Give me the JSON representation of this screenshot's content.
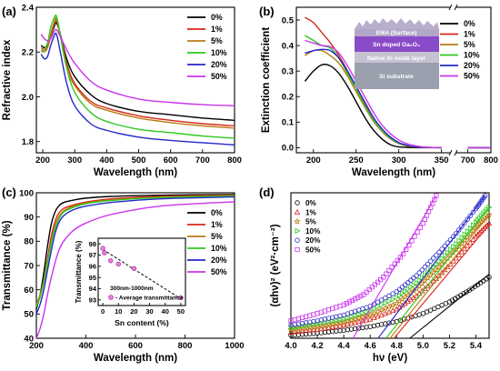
{
  "colors": {
    "0%": "#000000",
    "1%": "#d62718",
    "5%": "#b87a10",
    "10%": "#2ec91f",
    "20%": "#2327c8",
    "50%": "#cc33ee"
  },
  "legend_labels": [
    "0%",
    "1%",
    "5%",
    "10%",
    "20%",
    "50%"
  ],
  "chart_data": [
    {
      "panel": "(a)",
      "type": "line",
      "xlabel": "Wavelength (nm)",
      "ylabel": "Refractive index",
      "xlim": [
        180,
        800
      ],
      "ylim": [
        1.75,
        2.4
      ],
      "xticks": [
        200,
        300,
        400,
        500,
        600,
        700,
        800
      ],
      "yticks": [
        1.8,
        2.0,
        2.2,
        2.4
      ],
      "legend_loc": "top-right",
      "series": [
        {
          "name": "0%",
          "x": [
            195,
            205,
            215,
            225,
            235,
            243,
            255,
            275,
            300,
            350,
            400,
            500,
            600,
            700,
            800
          ],
          "y": [
            2.23,
            2.22,
            2.23,
            2.27,
            2.31,
            2.33,
            2.28,
            2.17,
            2.09,
            2.01,
            1.97,
            1.935,
            1.92,
            1.905,
            1.895
          ]
        },
        {
          "name": "1%",
          "x": [
            195,
            205,
            215,
            225,
            235,
            243,
            255,
            275,
            300,
            350,
            400,
            500,
            600,
            700,
            800
          ],
          "y": [
            2.22,
            2.21,
            2.22,
            2.27,
            2.32,
            2.34,
            2.28,
            2.15,
            2.06,
            1.98,
            1.95,
            1.915,
            1.895,
            1.88,
            1.87
          ]
        },
        {
          "name": "5%",
          "x": [
            195,
            205,
            215,
            225,
            235,
            243,
            255,
            275,
            300,
            350,
            400,
            500,
            600,
            700,
            800
          ],
          "y": [
            2.21,
            2.2,
            2.22,
            2.28,
            2.33,
            2.35,
            2.27,
            2.13,
            2.05,
            1.97,
            1.94,
            1.905,
            1.885,
            1.87,
            1.86
          ]
        },
        {
          "name": "10%",
          "x": [
            195,
            205,
            215,
            225,
            235,
            243,
            255,
            275,
            300,
            350,
            400,
            500,
            600,
            700,
            800
          ],
          "y": [
            2.2,
            2.21,
            2.24,
            2.31,
            2.35,
            2.36,
            2.28,
            2.13,
            2.02,
            1.93,
            1.89,
            1.855,
            1.84,
            1.825,
            1.815
          ]
        },
        {
          "name": "20%",
          "x": [
            195,
            205,
            215,
            225,
            235,
            243,
            255,
            275,
            300,
            350,
            400,
            500,
            600,
            700,
            800
          ],
          "y": [
            2.19,
            2.17,
            2.18,
            2.23,
            2.27,
            2.28,
            2.2,
            2.06,
            1.96,
            1.88,
            1.85,
            1.82,
            1.805,
            1.795,
            1.785
          ]
        },
        {
          "name": "50%",
          "x": [
            195,
            205,
            215,
            225,
            235,
            243,
            255,
            275,
            300,
            350,
            400,
            500,
            600,
            700,
            800
          ],
          "y": [
            2.28,
            2.26,
            2.25,
            2.26,
            2.29,
            2.3,
            2.27,
            2.21,
            2.15,
            2.07,
            2.03,
            1.99,
            1.975,
            1.965,
            1.96
          ]
        }
      ]
    },
    {
      "panel": "(b)",
      "type": "line",
      "xlabel": "Wavelength (nm)",
      "ylabel": "Extinction coefficient",
      "xlim": [
        180,
        800
      ],
      "axis_break": [
        360,
        650
      ],
      "ylim": [
        -0.02,
        0.55
      ],
      "xticks": [
        200,
        250,
        300,
        350,
        700,
        800
      ],
      "yticks": [
        0.0,
        0.1,
        0.2,
        0.3,
        0.4,
        0.5
      ],
      "legend_loc": "top-right",
      "inset_layers": [
        "EMA (Surface)",
        "Sn doped Ga₂O₃",
        "Native Si oxide layer",
        "Si substrate"
      ],
      "series": [
        {
          "name": "0%",
          "x": [
            190,
            200,
            210,
            220,
            230,
            240,
            250,
            260,
            270,
            280,
            290,
            300,
            320,
            350,
            700,
            800
          ],
          "y": [
            0.26,
            0.3,
            0.325,
            0.32,
            0.29,
            0.24,
            0.18,
            0.12,
            0.07,
            0.035,
            0.012,
            0.003,
            0.0,
            0.0,
            0.0,
            0.0
          ]
        },
        {
          "name": "1%",
          "x": [
            190,
            200,
            210,
            220,
            230,
            240,
            250,
            260,
            270,
            280,
            290,
            300,
            310,
            320,
            350,
            700,
            800
          ],
          "y": [
            0.51,
            0.49,
            0.45,
            0.41,
            0.36,
            0.3,
            0.23,
            0.17,
            0.11,
            0.065,
            0.035,
            0.016,
            0.006,
            0.002,
            0.0,
            0.0,
            0.0
          ]
        },
        {
          "name": "5%",
          "x": [
            190,
            200,
            210,
            220,
            230,
            240,
            250,
            260,
            270,
            280,
            290,
            300,
            310,
            320,
            350,
            700,
            800
          ],
          "y": [
            0.36,
            0.38,
            0.38,
            0.36,
            0.33,
            0.28,
            0.22,
            0.16,
            0.105,
            0.065,
            0.036,
            0.017,
            0.007,
            0.002,
            0.0,
            0.0,
            0.0
          ]
        },
        {
          "name": "10%",
          "x": [
            190,
            200,
            210,
            220,
            230,
            240,
            250,
            260,
            270,
            280,
            290,
            300,
            310,
            320,
            350,
            700,
            800
          ],
          "y": [
            0.44,
            0.42,
            0.4,
            0.39,
            0.35,
            0.29,
            0.23,
            0.165,
            0.11,
            0.068,
            0.038,
            0.018,
            0.008,
            0.003,
            0.0,
            0.0,
            0.0
          ]
        },
        {
          "name": "20%",
          "x": [
            190,
            200,
            210,
            220,
            230,
            240,
            250,
            260,
            270,
            280,
            290,
            300,
            310,
            320,
            350,
            700,
            800
          ],
          "y": [
            0.37,
            0.38,
            0.385,
            0.38,
            0.35,
            0.3,
            0.24,
            0.18,
            0.12,
            0.075,
            0.042,
            0.02,
            0.009,
            0.003,
            0.0,
            0.0,
            0.0
          ]
        },
        {
          "name": "50%",
          "x": [
            190,
            200,
            210,
            220,
            230,
            240,
            250,
            260,
            270,
            280,
            290,
            300,
            310,
            320,
            330,
            350,
            700,
            800
          ],
          "y": [
            0.42,
            0.41,
            0.4,
            0.395,
            0.37,
            0.32,
            0.26,
            0.2,
            0.14,
            0.09,
            0.055,
            0.03,
            0.015,
            0.007,
            0.002,
            0.0,
            0.0,
            0.0
          ]
        }
      ]
    },
    {
      "panel": "(c)",
      "type": "line",
      "xlabel": "Wavelength (nm)",
      "ylabel": "Transmittance (%)",
      "xlim": [
        200,
        1000
      ],
      "ylim": [
        40,
        100
      ],
      "xticks": [
        200,
        400,
        600,
        800,
        1000
      ],
      "yticks": [
        40,
        50,
        60,
        70,
        80,
        90,
        100
      ],
      "legend_loc": "right",
      "series": [
        {
          "name": "0%",
          "x": [
            200,
            215,
            230,
            245,
            260,
            275,
            290,
            310,
            350,
            400,
            500,
            700,
            1000
          ],
          "y": [
            52,
            58,
            67,
            78,
            87,
            92,
            94.5,
            96,
            97,
            97.8,
            98.5,
            99,
            99.3
          ]
        },
        {
          "name": "1%",
          "x": [
            200,
            215,
            230,
            245,
            260,
            275,
            290,
            310,
            350,
            400,
            500,
            700,
            1000
          ],
          "y": [
            53,
            57,
            64,
            73,
            82,
            88,
            91.5,
            93.5,
            95,
            96.2,
            97.5,
            98.5,
            99
          ]
        },
        {
          "name": "5%",
          "x": [
            200,
            215,
            230,
            245,
            260,
            275,
            290,
            310,
            350,
            400,
            500,
            700,
            1000
          ],
          "y": [
            54,
            58,
            64,
            72,
            80,
            86,
            90,
            92.5,
            94.5,
            95.8,
            97,
            98.2,
            98.8
          ]
        },
        {
          "name": "10%",
          "x": [
            200,
            215,
            230,
            245,
            260,
            275,
            290,
            310,
            350,
            400,
            500,
            700,
            1000
          ],
          "y": [
            53,
            57,
            63,
            71,
            79,
            85,
            89,
            92,
            94,
            95.5,
            96.8,
            98,
            98.7
          ]
        },
        {
          "name": "20%",
          "x": [
            200,
            215,
            230,
            245,
            260,
            275,
            290,
            310,
            350,
            400,
            500,
            700,
            1000
          ],
          "y": [
            50,
            54,
            60,
            68,
            76,
            83,
            87.5,
            90.5,
            93,
            94.5,
            96,
            97.5,
            98.3
          ]
        },
        {
          "name": "50%",
          "x": [
            200,
            215,
            230,
            245,
            260,
            275,
            290,
            310,
            350,
            400,
            500,
            700,
            1000
          ],
          "y": [
            40,
            44,
            50,
            58,
            65,
            71,
            76,
            80,
            84.5,
            87.5,
            91,
            94.5,
            96.3
          ]
        }
      ],
      "inset": {
        "type": "scatter",
        "xlabel": "Sn content (%)",
        "ylabel": "Transmittance (%)",
        "xlim": [
          -3,
          53
        ],
        "ylim": [
          92.5,
          98.5
        ],
        "xticks": [
          0,
          10,
          20,
          30,
          40,
          50
        ],
        "yticks": [
          93,
          94,
          95,
          96,
          97,
          98
        ],
        "annotation": "300nm-1000nm",
        "legend": "Average transmittance",
        "points": {
          "x": [
            0,
            1,
            5,
            10,
            20,
            50
          ],
          "y": [
            97.6,
            97.2,
            96.5,
            96.2,
            95.8,
            93.2
          ]
        },
        "trend": {
          "x": [
            0,
            50
          ],
          "y": [
            97.5,
            93.1
          ]
        }
      }
    },
    {
      "panel": "(d)",
      "type": "scatter",
      "xlabel": "hν (eV)",
      "ylabel": "(αhν)² (eV²·cm⁻²)",
      "xlim": [
        4.0,
        5.5
      ],
      "ylim": [
        0,
        1
      ],
      "xticks": [
        4.0,
        4.2,
        4.4,
        4.6,
        4.8,
        5.0,
        5.2,
        5.4
      ],
      "legend_loc": "top-left",
      "markers": [
        "circle",
        "triangle-up",
        "star",
        "triangle-right",
        "circle",
        "square"
      ],
      "series": [
        {
          "name": "0%",
          "x": [
            4.0,
            4.2,
            4.4,
            4.6,
            4.8,
            5.0,
            5.2,
            5.35,
            5.5
          ],
          "y": [
            0.02,
            0.035,
            0.055,
            0.08,
            0.115,
            0.17,
            0.25,
            0.33,
            0.42
          ]
        },
        {
          "name": "1%",
          "x": [
            4.0,
            4.2,
            4.4,
            4.6,
            4.8,
            4.95,
            5.1,
            5.25,
            5.4,
            5.5
          ],
          "y": [
            0.04,
            0.06,
            0.09,
            0.13,
            0.2,
            0.29,
            0.41,
            0.55,
            0.7,
            0.79
          ]
        },
        {
          "name": "5%",
          "x": [
            4.0,
            4.2,
            4.4,
            4.6,
            4.8,
            4.95,
            5.1,
            5.25,
            5.4,
            5.5
          ],
          "y": [
            0.06,
            0.08,
            0.11,
            0.16,
            0.24,
            0.34,
            0.47,
            0.61,
            0.76,
            0.85
          ]
        },
        {
          "name": "10%",
          "x": [
            4.0,
            4.2,
            4.4,
            4.6,
            4.8,
            4.95,
            5.1,
            5.25,
            5.4,
            5.5
          ],
          "y": [
            0.07,
            0.1,
            0.13,
            0.19,
            0.28,
            0.38,
            0.51,
            0.65,
            0.8,
            0.9
          ]
        },
        {
          "name": "20%",
          "x": [
            4.0,
            4.2,
            4.4,
            4.6,
            4.8,
            4.95,
            5.1,
            5.25,
            5.4,
            5.47
          ],
          "y": [
            0.09,
            0.12,
            0.16,
            0.22,
            0.32,
            0.43,
            0.57,
            0.72,
            0.89,
            0.98
          ]
        },
        {
          "name": "50%",
          "x": [
            4.0,
            4.2,
            4.4,
            4.55,
            4.7,
            4.85,
            5.0,
            5.1
          ],
          "y": [
            0.12,
            0.17,
            0.23,
            0.3,
            0.42,
            0.58,
            0.79,
            0.98
          ]
        }
      ],
      "fits": [
        {
          "name": "0%",
          "x": [
            4.9,
            5.5
          ],
          "y": [
            0.0,
            0.44
          ]
        },
        {
          "name": "1%",
          "x": [
            4.78,
            5.5
          ],
          "y": [
            0.0,
            0.78
          ]
        },
        {
          "name": "5%",
          "x": [
            4.75,
            5.5
          ],
          "y": [
            0.0,
            0.85
          ]
        },
        {
          "name": "10%",
          "x": [
            4.72,
            5.5
          ],
          "y": [
            0.0,
            0.9
          ]
        },
        {
          "name": "20%",
          "x": [
            4.66,
            5.47
          ],
          "y": [
            0.0,
            0.98
          ]
        },
        {
          "name": "50%",
          "x": [
            4.47,
            5.1
          ],
          "y": [
            0.0,
            0.98
          ]
        }
      ]
    }
  ]
}
